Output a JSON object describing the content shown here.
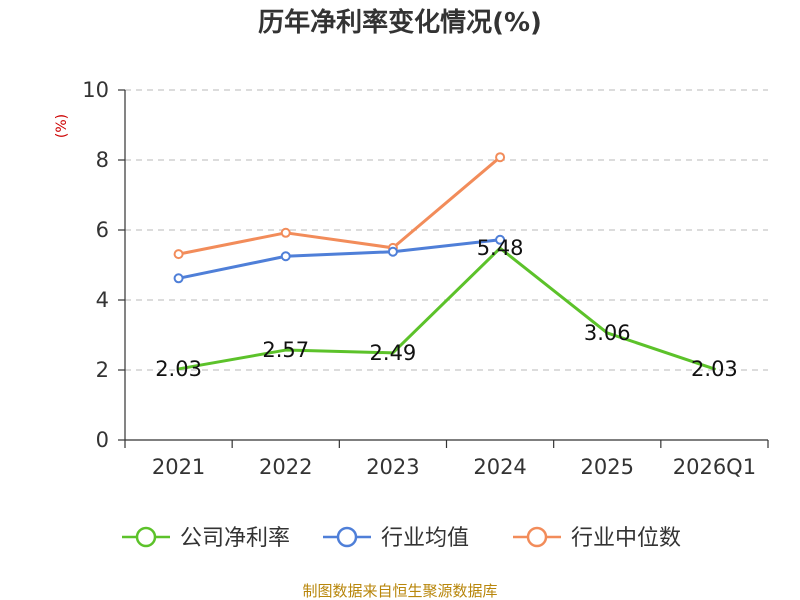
{
  "chart_data": {
    "type": "line",
    "title": "历年净利率变化情况(%)",
    "ylabel": "(%)",
    "ylim": [
      0,
      10
    ],
    "yticks": [
      0,
      2,
      4,
      6,
      8,
      10
    ],
    "categories": [
      "2021",
      "2022",
      "2023",
      "2024",
      "2025",
      "2026Q1"
    ],
    "grid": true,
    "legend_position": "bottom",
    "series": [
      {
        "name": "公司净利率",
        "color": "#5cc22a",
        "values": [
          2.03,
          2.57,
          2.49,
          5.48,
          3.06,
          2.03
        ],
        "labels": [
          "2.03",
          "2.57",
          "2.49",
          "5.48",
          "3.06",
          "2.03"
        ],
        "markers": false
      },
      {
        "name": "行业均值",
        "color": "#4f7fd8",
        "values": [
          4.62,
          5.25,
          5.38,
          5.72,
          null,
          null
        ],
        "markers": true
      },
      {
        "name": "行业中位数",
        "color": "#f28c5a",
        "values": [
          5.31,
          5.92,
          5.49,
          8.08,
          null,
          null
        ],
        "markers": true
      }
    ],
    "source": "制图数据来自恒生聚源数据库"
  }
}
